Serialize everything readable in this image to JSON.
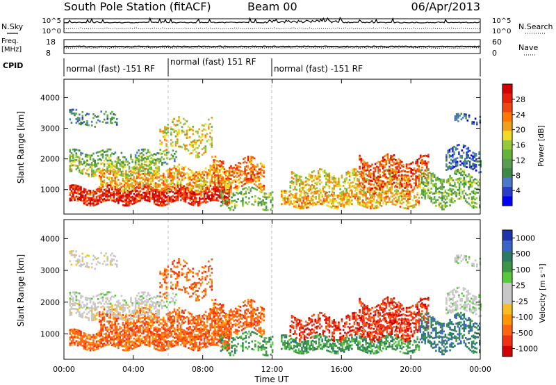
{
  "header": {
    "station": "South Pole Station (fitACF)",
    "beam": "Beam 00",
    "date": "06/Apr/2013"
  },
  "top_panels": {
    "nsky_label": "N.Sky",
    "nsearch_label": "N.Search",
    "tick_top": "10^5",
    "tick_bottom": "10^0",
    "freq_label_1": "Freq.",
    "freq_label_2": "[MHz]",
    "freq_top": "18",
    "freq_bottom": "8",
    "nave_top": "60",
    "nave_bottom": "0",
    "nave_label": "Nave",
    "cpid_label": "CPID"
  },
  "cpid_modes": [
    {
      "label": "normal (fast) -151 RF"
    },
    {
      "label": "normal (fast) 151 RF"
    },
    {
      "label": "normal (fast) -151 RF"
    }
  ],
  "colors": {
    "power": [
      "#0000ff",
      "#2a3cc8",
      "#4b78c8",
      "#3c8a46",
      "#5a9c52",
      "#64b43c",
      "#96c83c",
      "#f0dc28",
      "#f0a01e",
      "#ff7800",
      "#f04614",
      "#e61e0a",
      "#d20000"
    ],
    "velocity": [
      "#d20000",
      "#f03214",
      "#ff6414",
      "#ff960a",
      "#f5be28",
      "#c8c8c8",
      "#c8c8c8",
      "#5ac83c",
      "#3c9646",
      "#2c7a64",
      "#3c64c8",
      "#1e32aa"
    ]
  },
  "chart_data": [
    {
      "type": "heatmap",
      "name": "power",
      "ylabel": "Slant Range [km]",
      "yticks": [
        "1000",
        "2000",
        "3000",
        "4000"
      ],
      "ylim": [
        200,
        4600
      ],
      "xlim": [
        0,
        24
      ],
      "colorbar_label": "Power [dB]",
      "colorbar_ticks": [
        "4",
        "8",
        "12",
        "16",
        "20",
        "24",
        "28"
      ]
    },
    {
      "type": "heatmap",
      "name": "velocity",
      "ylabel": "Slant Range [km]",
      "xlabel": "Time UT",
      "yticks": [
        "1000",
        "2000",
        "3000",
        "4000"
      ],
      "ylim": [
        200,
        4600
      ],
      "xlim": [
        0,
        24
      ],
      "xticks": [
        "00:00",
        "04:00",
        "08:00",
        "12:00",
        "16:00",
        "20:00",
        "00:00"
      ],
      "colorbar_label": "Velocity [m s⁻¹]",
      "colorbar_ticks": [
        "1000",
        "500",
        "100",
        "25",
        "-25",
        "-100",
        "-500",
        "-1000"
      ]
    }
  ]
}
